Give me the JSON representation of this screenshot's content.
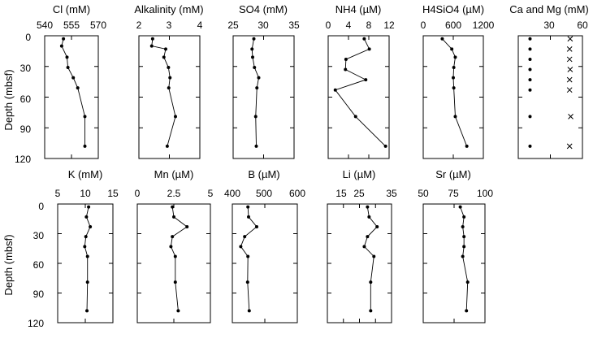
{
  "chart_data": [
    {
      "type": "line",
      "title": "Cl (mM)",
      "xlim": [
        540,
        570
      ],
      "xticks": [
        540,
        555,
        570
      ],
      "ylim": [
        0,
        120
      ],
      "ylabel": "Depth (mbsf)",
      "series": [
        {
          "x": [
            550.5,
            549.5,
            552.5,
            553,
            556,
            558.5,
            562.5,
            562.5
          ],
          "y": [
            3,
            10,
            21,
            31,
            41,
            51,
            79,
            108
          ]
        }
      ]
    },
    {
      "type": "line",
      "title": "Alkalinity (mM)",
      "xlim": [
        2,
        4
      ],
      "xticks": [
        2,
        3,
        4
      ],
      "ylim": [
        0,
        120
      ],
      "series": [
        {
          "x": [
            2.45,
            2.42,
            2.88,
            2.82,
            2.97,
            3.02,
            2.98,
            3.2,
            2.93
          ],
          "y": [
            3,
            10,
            13,
            21,
            31,
            41,
            51,
            79,
            108
          ]
        }
      ]
    },
    {
      "type": "line",
      "title": "SO4 (mM)",
      "xlim": [
        25,
        35
      ],
      "xticks": [
        25,
        30,
        35
      ],
      "ylim": [
        0,
        120
      ],
      "series": [
        {
          "x": [
            28.4,
            28.1,
            28.2,
            28.5,
            29.2,
            28.9,
            28.7,
            28.8
          ],
          "y": [
            3,
            13,
            21,
            31,
            41,
            51,
            79,
            108
          ]
        }
      ]
    },
    {
      "type": "line",
      "title": "NH4 (µM)",
      "xlim": [
        0,
        12
      ],
      "xticks": [
        0,
        4,
        8,
        12
      ],
      "ylim": [
        0,
        120
      ],
      "series": [
        {
          "x": [
            7.1,
            8.1,
            3.5,
            3.4,
            7.4,
            1.4,
            5.4,
            11.3
          ],
          "y": [
            3,
            13,
            23,
            33,
            43,
            53,
            79,
            108
          ]
        }
      ]
    },
    {
      "type": "line",
      "title": "H4SiO4 (µM)",
      "xlim": [
        0,
        1200
      ],
      "xticks": [
        0,
        600,
        1200
      ],
      "ylim": [
        0,
        120
      ],
      "series": [
        {
          "x": [
            380,
            570,
            640,
            610,
            600,
            610,
            640,
            870
          ],
          "y": [
            3,
            13,
            21,
            31,
            41,
            51,
            79,
            108
          ]
        }
      ]
    },
    {
      "type": "scatter",
      "title": "Ca and Mg (mM)",
      "xlim": [
        0,
        60
      ],
      "xticks": [
        0,
        30,
        60
      ],
      "ylim": [
        0,
        120
      ],
      "series": [
        {
          "marker": "dot",
          "x": [
            11,
            11,
            11,
            11,
            11,
            11,
            11,
            11
          ],
          "y": [
            3,
            13,
            23,
            33,
            43,
            53,
            79,
            108
          ]
        },
        {
          "marker": "x",
          "x": [
            48.5,
            48,
            48,
            48.5,
            48,
            48,
            49,
            48
          ],
          "y": [
            3,
            13,
            23,
            33,
            43,
            53,
            79,
            108
          ]
        }
      ]
    },
    {
      "type": "line",
      "title": "K (mM)",
      "xlim": [
        5,
        15
      ],
      "xticks": [
        5,
        10,
        15
      ],
      "ylim": [
        0,
        120
      ],
      "ylabel": "Depth (mbsf)",
      "series": [
        {
          "x": [
            10.6,
            10.2,
            10.9,
            10.1,
            9.9,
            10.4,
            10.4,
            10.3
          ],
          "y": [
            3,
            13,
            23,
            33,
            43,
            53,
            79,
            108
          ]
        }
      ]
    },
    {
      "type": "line",
      "title": "Mn (µM)",
      "xlim": [
        0,
        5
      ],
      "xticks": [
        0,
        2.5,
        5
      ],
      "ylim": [
        0,
        120
      ],
      "series": [
        {
          "x": [
            2.4,
            2.5,
            3.4,
            2.4,
            2.3,
            2.6,
            2.6,
            2.8
          ],
          "y": [
            3,
            13,
            23,
            33,
            43,
            53,
            79,
            108
          ]
        }
      ]
    },
    {
      "type": "line",
      "title": "B (µM)",
      "xlim": [
        400,
        600
      ],
      "xticks": [
        400,
        500,
        600
      ],
      "ylim": [
        0,
        120
      ],
      "series": [
        {
          "x": [
            448,
            450,
            475,
            438,
            426,
            448,
            447,
            452
          ],
          "y": [
            3,
            13,
            23,
            33,
            43,
            53,
            79,
            108
          ]
        }
      ]
    },
    {
      "type": "line",
      "title": "Li (µM)",
      "xlim": [
        15,
        35
      ],
      "xticks": [
        15,
        20,
        25,
        30,
        35
      ],
      "ylim": [
        0,
        120
      ],
      "series": [
        {
          "x": [
            27.5,
            28,
            30.5,
            27.5,
            26.5,
            29.5,
            28.5,
            28.5
          ],
          "y": [
            3,
            13,
            23,
            33,
            43,
            53,
            79,
            108
          ]
        }
      ]
    },
    {
      "type": "line",
      "title": "Sr (µM)",
      "xlim": [
        50,
        100
      ],
      "xticks": [
        50,
        75,
        100
      ],
      "ylim": [
        0,
        120
      ],
      "series": [
        {
          "x": [
            80,
            83,
            82,
            83,
            83,
            82,
            86,
            85
          ],
          "y": [
            3,
            13,
            23,
            33,
            43,
            53,
            79,
            108
          ]
        }
      ]
    }
  ],
  "tick_labels": {
    "cl": [
      "540",
      "555",
      "570"
    ],
    "alk": [
      "2",
      "3",
      "4"
    ],
    "so4": [
      "25",
      "30",
      "35"
    ],
    "nh4": [
      "0",
      "4",
      "8",
      "12"
    ],
    "si": [
      "0",
      "600",
      "1200"
    ],
    "camg": [
      "30",
      "60"
    ],
    "k": [
      "5",
      "10",
      "15"
    ],
    "mn": [
      "0",
      "2.5",
      "5"
    ],
    "b": [
      "400",
      "500",
      "600"
    ],
    "li": [
      "15",
      "20",
      "25",
      "30",
      "35"
    ],
    "sr": [
      "50",
      "75",
      "100"
    ],
    "depth": [
      "0",
      "30",
      "60",
      "90",
      "120"
    ]
  }
}
